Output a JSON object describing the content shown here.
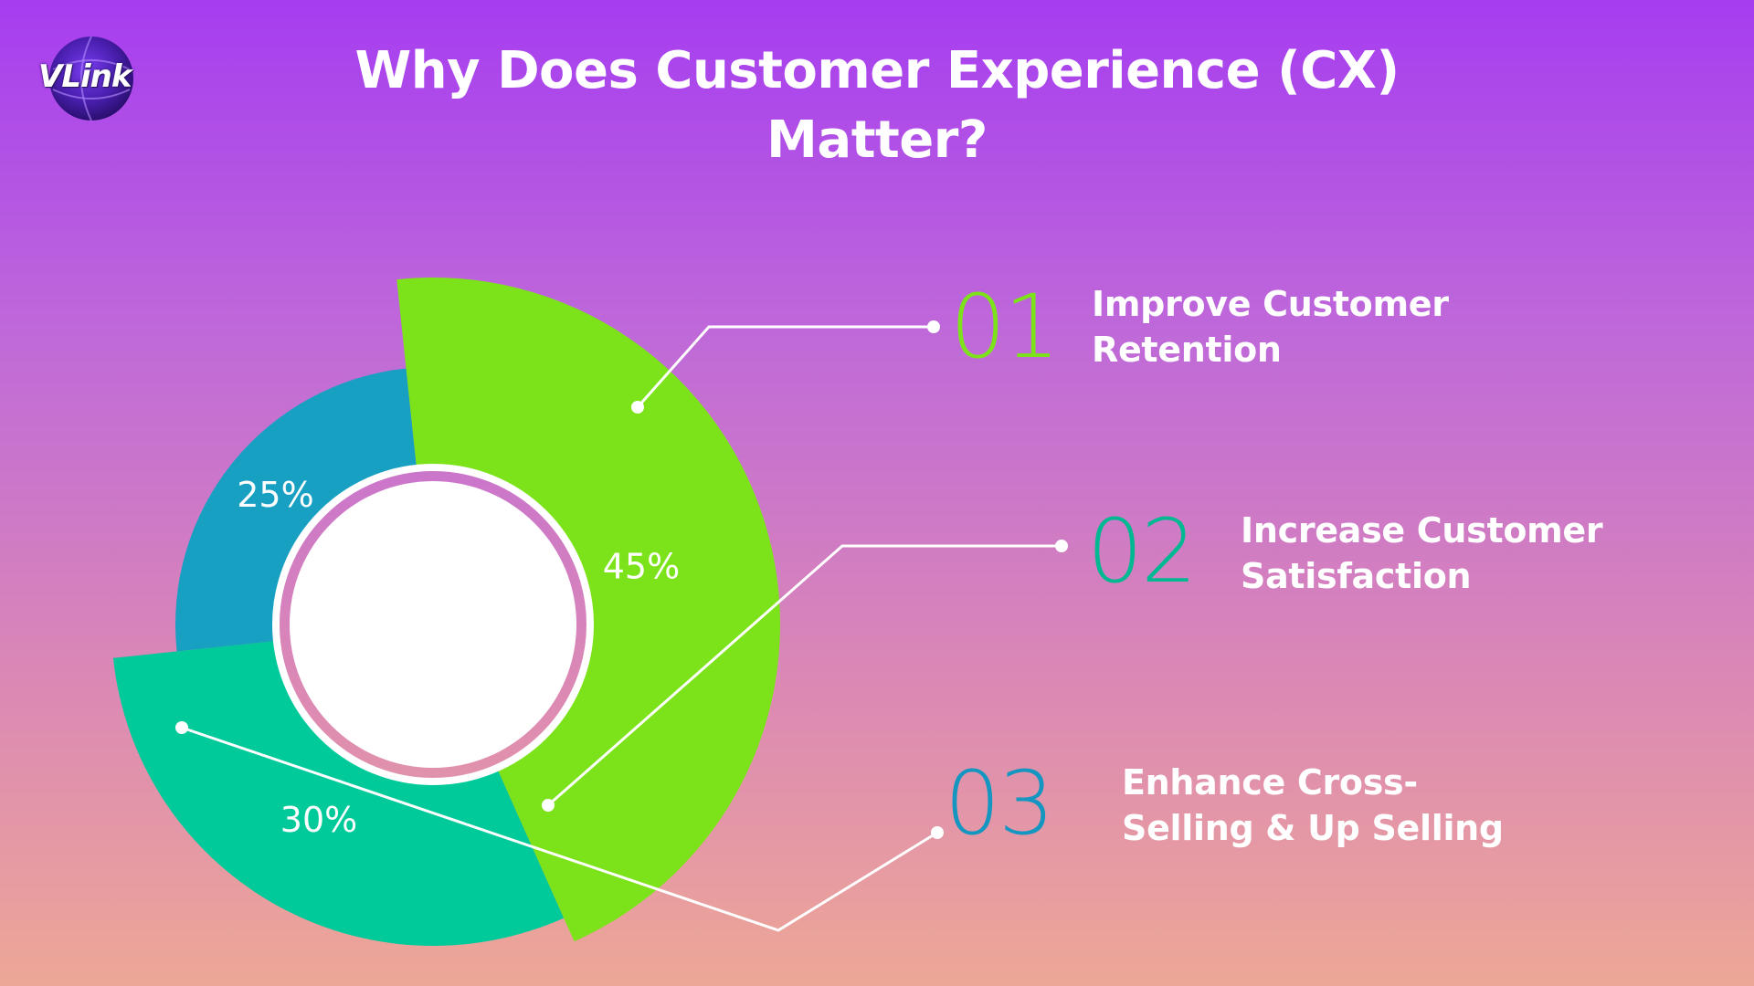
{
  "logo": {
    "text": "VLink"
  },
  "title": "Why Does Customer Experience (CX) Matter?",
  "chart_data": {
    "type": "pie",
    "title": "Why Does Customer Experience (CX) Matter?",
    "categories": [
      "01",
      "02",
      "03"
    ],
    "values": [
      45,
      30,
      25
    ],
    "labels": [
      "45%",
      "30%",
      "25%"
    ],
    "colors": [
      "#7ce31b",
      "#00c99a",
      "#18a0c2"
    ]
  },
  "items": [
    {
      "number": "01",
      "label_line1": "Improve Customer",
      "label_line2": "Retention",
      "color": "#7ce31b"
    },
    {
      "number": "02",
      "label_line1": "Increase Customer",
      "label_line2": "Satisfaction",
      "color": "#00b892"
    },
    {
      "number": "03",
      "label_line1": "Enhance Cross-",
      "label_line2": "Selling & Up Selling",
      "color": "#1596c0"
    }
  ]
}
